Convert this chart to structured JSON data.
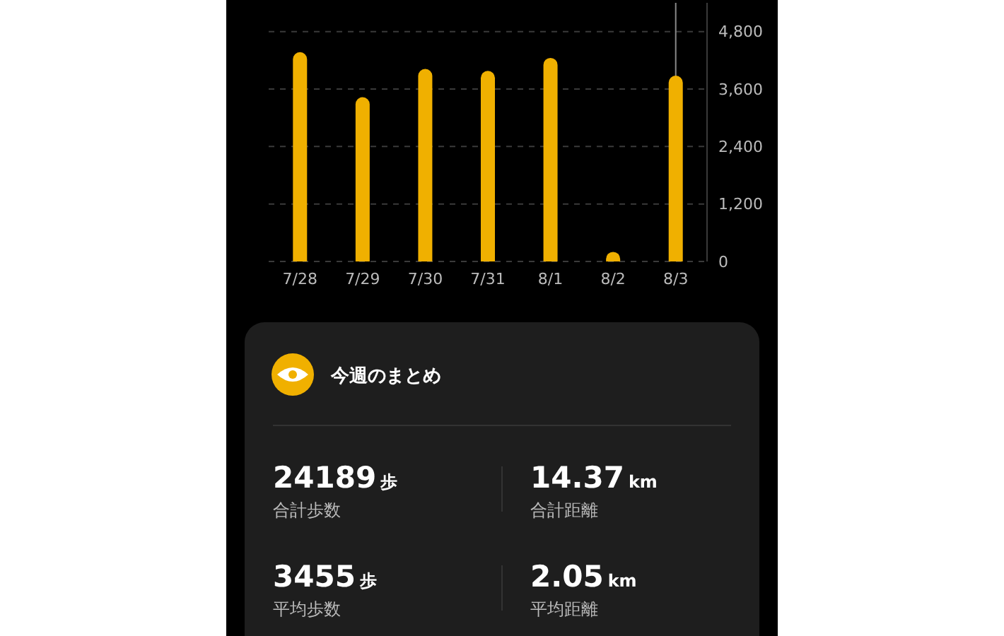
{
  "chart_data": {
    "type": "bar",
    "categories": [
      "7/28",
      "7/29",
      "7/30",
      "7/31",
      "8/1",
      "8/2",
      "8/3"
    ],
    "values": [
      4370,
      3430,
      4020,
      3980,
      4250,
      200,
      3880
    ],
    "color": "#f0b000",
    "ylim": [
      0,
      5400
    ],
    "yticks": [
      {
        "value": 0,
        "label": "0"
      },
      {
        "value": 1200,
        "label": "1,200"
      },
      {
        "value": 2400,
        "label": "2,400"
      },
      {
        "value": 3600,
        "label": "3,600"
      },
      {
        "value": 4800,
        "label": "4,800"
      }
    ],
    "grid": "y",
    "ref_lines": [
      {
        "axis": "x",
        "value": "8/3",
        "color": "#888888"
      }
    ],
    "annotations": [
      "今週のまとめ",
      "24189",
      "歩",
      "合計歩数",
      "14.37",
      "km",
      "合計距離",
      "3455",
      "歩",
      "平均歩数",
      "2.05",
      "km",
      "平均距離"
    ]
  }
}
